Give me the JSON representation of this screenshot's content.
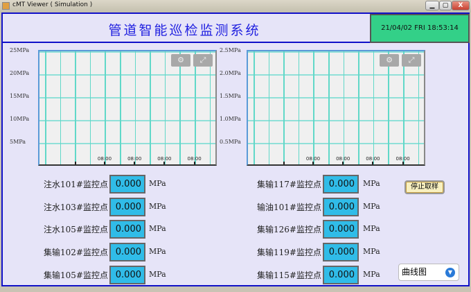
{
  "window": {
    "title": "cMT Viewer ( Simulation )",
    "minimize": "▁",
    "maximize": "▢",
    "close": "X"
  },
  "header": {
    "title": "管道智能巡检监测系统",
    "datetime": "21/04/02 FRI 18:53:14"
  },
  "charts": [
    {
      "y_ticks": [
        "25MPa",
        "20MPa",
        "15MPa",
        "10MPa",
        "5MPa"
      ],
      "x_ticks": [
        "08:00",
        "08:00",
        "08:00",
        "08:00"
      ],
      "ylim": [
        0,
        25
      ],
      "grid": true,
      "settings_icon": "gear-icon",
      "expand_icon": "expand-icon"
    },
    {
      "y_ticks": [
        "2.5MPa",
        "2.0MPa",
        "1.5MPa",
        "1.0MPa",
        "0.5MPa"
      ],
      "x_ticks": [
        "08:00",
        "08:00",
        "08:00",
        "08:00"
      ],
      "ylim": [
        0,
        2.5
      ],
      "grid": true,
      "settings_icon": "gear-icon",
      "expand_icon": "expand-icon"
    }
  ],
  "left_points": [
    {
      "label": "注水101#监控点",
      "value": "0.000",
      "unit": "MPa"
    },
    {
      "label": "注水103#监控点",
      "value": "0.000",
      "unit": "MPa"
    },
    {
      "label": "注水105#监控点",
      "value": "0.000",
      "unit": "MPa"
    },
    {
      "label": "集输102#监控点",
      "value": "0.000",
      "unit": "MPa"
    },
    {
      "label": "集输105#监控点",
      "value": "0.000",
      "unit": "MPa"
    }
  ],
  "right_points": [
    {
      "label": "集输117#监控点",
      "value": "0.000",
      "unit": "MPa"
    },
    {
      "label": "输油101#监控点",
      "value": "0.000",
      "unit": "MPa"
    },
    {
      "label": "集输126#监控点",
      "value": "0.000",
      "unit": "MPa"
    },
    {
      "label": "集输119#监控点",
      "value": "0.000",
      "unit": "MPa"
    },
    {
      "label": "集输115#监控点",
      "value": "0.000",
      "unit": "MPa"
    }
  ],
  "controls": {
    "stop_sampling": "停止取样",
    "view_select": "曲线图"
  },
  "colors": {
    "value_box": "#30bce8",
    "clock": "#33d088",
    "title": "#2020e0",
    "border": "#1010c8"
  }
}
